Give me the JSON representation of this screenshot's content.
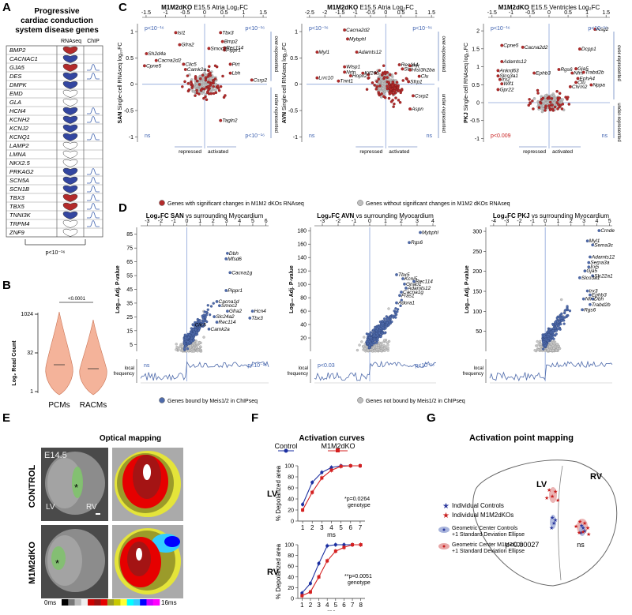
{
  "panel_letters": [
    "A",
    "B",
    "C",
    "D",
    "E",
    "F",
    "G"
  ],
  "panelA": {
    "title_lines": [
      "Progressive",
      "cardiac conduction",
      "system disease genes"
    ],
    "col_headers": [
      "RNAseq",
      "ChIP"
    ],
    "genes": [
      {
        "name": "BMP2",
        "rna": "red",
        "chip": false
      },
      {
        "name": "CACNAC1",
        "rna": "blue",
        "chip": false
      },
      {
        "name": "GJA5",
        "rna": "red",
        "chip": true
      },
      {
        "name": "DES",
        "rna": "blue",
        "chip": true
      },
      {
        "name": "DMPK",
        "rna": "blue",
        "chip": false
      },
      {
        "name": "EMD",
        "rna": "white",
        "chip": false
      },
      {
        "name": "GLA",
        "rna": "white",
        "chip": false
      },
      {
        "name": "HCN4",
        "rna": "blue",
        "chip": true
      },
      {
        "name": "KCNH2",
        "rna": "blue",
        "chip": true
      },
      {
        "name": "KCNJ2",
        "rna": "blue",
        "chip": false
      },
      {
        "name": "KCNQ1",
        "rna": "blue",
        "chip": true
      },
      {
        "name": "LAMP2",
        "rna": "white",
        "chip": false
      },
      {
        "name": "LMNA",
        "rna": "white",
        "chip": false
      },
      {
        "name": "NKX2.5",
        "rna": "white",
        "chip": false
      },
      {
        "name": "PRKAG2",
        "rna": "blue",
        "chip": true
      },
      {
        "name": "SCN5A",
        "rna": "blue",
        "chip": true
      },
      {
        "name": "SCN1B",
        "rna": "blue",
        "chip": true
      },
      {
        "name": "TBX3",
        "rna": "red",
        "chip": true
      },
      {
        "name": "TBX5",
        "rna": "red",
        "chip": true
      },
      {
        "name": "TNNI3K",
        "rna": "blue",
        "chip": true
      },
      {
        "name": "TRPM4",
        "rna": "white",
        "chip": true
      },
      {
        "name": "ZNF9",
        "rna": "white",
        "chip": false
      }
    ],
    "pvalue": "p<10⁻¹⁶",
    "colors": {
      "red": "#b32b2b",
      "blue": "#3346a0",
      "white": "#ffffff"
    }
  },
  "panelB": {
    "chart_data": {
      "type": "violin",
      "categories": [
        "PCMs",
        "RACMs"
      ],
      "ylabel": "Log₂ Read Count",
      "y_ticks": [
        "1024",
        "32",
        "1"
      ],
      "significance": "<0.0001",
      "colors": [
        "#f4b39a",
        "#f4b39a"
      ]
    }
  },
  "panelC": {
    "legend": {
      "sig": "Genes with significant changes in M1M2 dKOs RNAseq",
      "nonsig": "Genes without significant changes in M1M2 dKOs RNAseq"
    },
    "side_labels": {
      "over": "over-represented",
      "under": "under-represented"
    },
    "bottom_labels": {
      "repressed": "repressed",
      "activated": "activated"
    },
    "plots": [
      {
        "title_bold": "M1M2dKO",
        "title_rest": "E15.5 Atria Log₂FC",
        "ylabel_bold": "SAN",
        "ylabel_rest": "Single-cell RNAseq log₁₀FC",
        "x_ticks": [
          "-1.5",
          "-1",
          "-0.5",
          "0",
          "0.5",
          "1",
          "1.5"
        ],
        "y_ticks": [
          "1",
          "0.5",
          "0",
          "-0.5",
          "-1"
        ],
        "stat_tl": "p<10⁻¹⁶",
        "stat_tr": "p<10⁻¹⁶",
        "stat_bl": "ns",
        "stat_br": "p<10⁻¹⁶",
        "labels": [
          {
            "t": "Isl1",
            "x": -0.7,
            "y": 0.95
          },
          {
            "t": "Tbx3",
            "x": 0.45,
            "y": 0.95
          },
          {
            "t": "Sh2d4a",
            "x": -1.45,
            "y": 0.55
          },
          {
            "t": "Gfra2",
            "x": -0.6,
            "y": 0.72
          },
          {
            "t": "Bmp2",
            "x": 0.5,
            "y": 0.78
          },
          {
            "t": "Rec114",
            "x": 0.55,
            "y": 0.66
          },
          {
            "t": "Pippr1",
            "x": 0.55,
            "y": 0.62
          },
          {
            "t": "Smoc2",
            "x": 0.15,
            "y": 0.65
          },
          {
            "t": "Cacna2d2",
            "x": -1.2,
            "y": 0.42
          },
          {
            "t": "Clic5",
            "x": -0.5,
            "y": 0.35
          },
          {
            "t": "Cpne5",
            "x": -1.5,
            "y": 0.32
          },
          {
            "t": "Camk2a",
            "x": -0.45,
            "y": 0.25
          },
          {
            "t": "Pirt",
            "x": 0.7,
            "y": 0.35
          },
          {
            "t": "Lbh",
            "x": 0.7,
            "y": 0.18
          },
          {
            "t": "Csrp2",
            "x": 1.25,
            "y": 0.05
          },
          {
            "t": "Tagln2",
            "x": 0.45,
            "y": -0.72
          }
        ],
        "counts": {
          "sig": 70,
          "nonsig": 230
        },
        "seed": 11
      },
      {
        "title_bold": "M1M2dKO",
        "title_rest": "E15.5 Atria Log₂FC",
        "ylabel_bold": "AVN",
        "ylabel_rest": "Single-cell RNAseq log₁₀FC",
        "x_ticks": [
          "-2.5",
          "-2",
          "-1.5",
          "-1",
          "-0.5",
          "0",
          "0.5",
          "1",
          "1.5"
        ],
        "y_ticks": [
          "1",
          "0.5",
          "0",
          "-0.5",
          "-1"
        ],
        "stat_tl": "p<10⁻¹⁶",
        "stat_tr": "p<10⁻¹⁶",
        "stat_bl": "ns",
        "stat_br": "ns",
        "labels": [
          {
            "t": "Cacna2d2",
            "x": -1.3,
            "y": 1.0
          },
          {
            "t": "Mybphl",
            "x": -1.2,
            "y": 0.83
          },
          {
            "t": "Myl1",
            "x": -2.2,
            "y": 0.58
          },
          {
            "t": "Adamts12",
            "x": -0.9,
            "y": 0.58
          },
          {
            "t": "Rec114",
            "x": 0.5,
            "y": 0.34
          },
          {
            "t": "Pirt",
            "x": 0.85,
            "y": 0.32
          },
          {
            "t": "Stn",
            "x": 0.6,
            "y": 0.26
          },
          {
            "t": "Hist3h2ba",
            "x": 0.85,
            "y": 0.24
          },
          {
            "t": "Wisp1",
            "x": -1.3,
            "y": 0.3
          },
          {
            "t": "Nrtn",
            "x": -1.3,
            "y": 0.2
          },
          {
            "t": "Kif26b",
            "x": -0.7,
            "y": 0.18
          },
          {
            "t": "Hopx2",
            "x": -1.1,
            "y": 0.13
          },
          {
            "t": "Lrrc10",
            "x": -2.2,
            "y": 0.09
          },
          {
            "t": "Tnnt1",
            "x": -1.5,
            "y": 0.03
          },
          {
            "t": "Clu",
            "x": 1.15,
            "y": 0.12
          },
          {
            "t": "Sfrp1",
            "x": 0.8,
            "y": 0.02
          },
          {
            "t": "Csrp2",
            "x": 0.95,
            "y": -0.25
          },
          {
            "t": "Aspn",
            "x": 0.85,
            "y": -0.5
          }
        ],
        "counts": {
          "sig": 110,
          "nonsig": 220
        },
        "seed": 23
      },
      {
        "title_bold": "M1M2dKO",
        "title_rest": "E15.5 Ventricles Log₂FC",
        "ylabel_bold": "PKJ",
        "ylabel_rest": "Single-cell RNAseq log₁₀FC",
        "x_ticks": [
          "-1.5",
          "-1",
          "-0.5",
          "0",
          "0.5",
          "1",
          "1.5"
        ],
        "y_ticks": [
          "2",
          "1.5",
          "1",
          "0.5",
          "0",
          "-0.5",
          "-1"
        ],
        "stat_tl": "p<10⁻¹⁶",
        "stat_tr": "p<10⁻¹⁶",
        "stat_bl": "p<0.009",
        "stat_br": "ns",
        "labels": [
          {
            "t": "Nsg2",
            "x": 1.25,
            "y": 2.0
          },
          {
            "t": "Cpne5",
            "x": -1.2,
            "y": 1.55
          },
          {
            "t": "Cacna2d2",
            "x": -0.65,
            "y": 1.5
          },
          {
            "t": "Dcpp1",
            "x": 0.85,
            "y": 1.45
          },
          {
            "t": "Adamts12",
            "x": -1.2,
            "y": 1.1
          },
          {
            "t": "Ankrd63",
            "x": -1.3,
            "y": 0.85
          },
          {
            "t": "Slco3a1",
            "x": -1.3,
            "y": 0.7
          },
          {
            "t": "Irx2",
            "x": -1.25,
            "y": 0.6
          },
          {
            "t": "Wif1",
            "x": -1.2,
            "y": 0.48
          },
          {
            "t": "Gpr22",
            "x": -1.3,
            "y": 0.32
          },
          {
            "t": "Ephb3",
            "x": -0.35,
            "y": 0.78
          },
          {
            "t": "Rgs6",
            "x": 0.3,
            "y": 0.88
          },
          {
            "t": "Gja5",
            "x": 0.75,
            "y": 0.9
          },
          {
            "t": "Nfm",
            "x": 0.65,
            "y": 0.78
          },
          {
            "t": "Trabd2b",
            "x": 0.95,
            "y": 0.8
          },
          {
            "t": "EphA4",
            "x": 0.8,
            "y": 0.63
          },
          {
            "t": "Clu",
            "x": 0.75,
            "y": 0.52
          },
          {
            "t": "Chrm2",
            "x": 0.6,
            "y": 0.4
          },
          {
            "t": "Nppa",
            "x": 1.15,
            "y": 0.45
          }
        ],
        "counts": {
          "sig": 45,
          "nonsig": 250
        },
        "seed": 37
      }
    ]
  },
  "panelD": {
    "legend": {
      "bound": "Genes bound by Meis1/2 in ChIPseq",
      "unbound": "Genes not bound by Meis1/2 in ChIPseq"
    },
    "local_freq_label": [
      "local",
      "frequency"
    ],
    "plots": [
      {
        "title_bold": "Log₂FC SAN",
        "title_rest": "vs surrounding Myocardium",
        "ylabel": "Log₁₀ Adj. P-value",
        "x_ticks": [
          "-3",
          "-2",
          "-1",
          "0",
          "1",
          "2",
          "3",
          "4",
          "5",
          "6"
        ],
        "y_ticks": [
          "85",
          "75",
          "65",
          "55",
          "45",
          "35",
          "25",
          "15",
          "5"
        ],
        "stat_l": "ns",
        "stat_r": "p<10⁻¹⁶",
        "labels": [
          {
            "t": "Dbh",
            "x": 3.2,
            "y": 70
          },
          {
            "t": "Mfsd6",
            "x": 3.1,
            "y": 66
          },
          {
            "t": "Cacna1g",
            "x": 3.4,
            "y": 56
          },
          {
            "t": "Pippr1",
            "x": 3.1,
            "y": 43
          },
          {
            "t": "Cacna1d",
            "x": 2.4,
            "y": 35
          },
          {
            "t": "Smoc2",
            "x": 2.6,
            "y": 32
          },
          {
            "t": "Gfra2",
            "x": 3.2,
            "y": 28
          },
          {
            "t": "Hcn4",
            "x": 5.1,
            "y": 28
          },
          {
            "t": "Slc24a2",
            "x": 2.2,
            "y": 24
          },
          {
            "t": "Rec114",
            "x": 2.4,
            "y": 20
          },
          {
            "t": "Tbx3",
            "x": 4.9,
            "y": 23
          },
          {
            "t": "Clic5",
            "x": 0.6,
            "y": 18
          },
          {
            "t": "Camk2a",
            "x": 1.8,
            "y": 15
          }
        ],
        "counts": {
          "bound": 260,
          "unbound": 160
        },
        "seed": 53
      },
      {
        "title_bold": "Log₂FC AVN",
        "title_rest": "vs surrounding Myocardium",
        "ylabel": "Log₁₀ Adj. P-value",
        "x_ticks": [
          "-3",
          "-2",
          "-1",
          "0",
          "1",
          "2",
          "3",
          "4"
        ],
        "y_ticks": [
          "180",
          "160",
          "140",
          "120",
          "100",
          "80",
          "60",
          "40",
          "20"
        ],
        "stat_l": "p<0.03",
        "stat_r": "p<10⁻¹⁶",
        "labels": [
          {
            "t": "Mybphl",
            "x": 3.3,
            "y": 175
          },
          {
            "t": "Rgs6",
            "x": 2.6,
            "y": 160
          },
          {
            "t": "Tbx5",
            "x": 1.8,
            "y": 112
          },
          {
            "t": "Kcnj5",
            "x": 2.2,
            "y": 106
          },
          {
            "t": "Rec114",
            "x": 2.9,
            "y": 102
          },
          {
            "t": "Gnao1",
            "x": 2.3,
            "y": 98
          },
          {
            "t": "Adamts12",
            "x": 2.4,
            "y": 92
          },
          {
            "t": "Cacna1g",
            "x": 2.1,
            "y": 86
          },
          {
            "t": "Fras1",
            "x": 2.0,
            "y": 81
          },
          {
            "t": "Adora1",
            "x": 1.8,
            "y": 70
          }
        ],
        "counts": {
          "bound": 300,
          "unbound": 150
        },
        "seed": 71
      },
      {
        "title_bold": "Log₂FC PKJ",
        "title_rest": "vs surrounding Myocardium",
        "ylabel": "Log₁₀ Adj. P-value",
        "x_ticks": [
          "-4",
          "-3",
          "-2",
          "-1",
          "0",
          "1",
          "2",
          "3",
          "4",
          "5"
        ],
        "y_ticks": [
          "300",
          "250",
          "200",
          "150",
          "100",
          "50"
        ],
        "stat_l": "",
        "stat_r": "",
        "labels": [
          {
            "t": "Crnde",
            "x": 4.3,
            "y": 298
          },
          {
            "t": "Myl1",
            "x": 3.4,
            "y": 272
          },
          {
            "t": "Sema3c",
            "x": 3.8,
            "y": 262
          },
          {
            "t": "Adamts12",
            "x": 3.6,
            "y": 232
          },
          {
            "t": "Sema3a",
            "x": 3.5,
            "y": 218
          },
          {
            "t": "Irx5",
            "x": 3.5,
            "y": 207
          },
          {
            "t": "Gja5",
            "x": 3.2,
            "y": 197
          },
          {
            "t": "Slc22a1",
            "x": 3.8,
            "y": 185
          },
          {
            "t": "Slco3a1",
            "x": 2.8,
            "y": 180
          },
          {
            "t": "Irx3",
            "x": 3.4,
            "y": 147
          },
          {
            "t": "Ephb3",
            "x": 3.6,
            "y": 137
          },
          {
            "t": "Nfm",
            "x": 3.1,
            "y": 127
          },
          {
            "t": "Dbh",
            "x": 3.8,
            "y": 127
          },
          {
            "t": "Trabd2b",
            "x": 3.6,
            "y": 113
          },
          {
            "t": "Rgs6",
            "x": 3.0,
            "y": 100
          }
        ],
        "counts": {
          "bound": 230,
          "unbound": 160
        },
        "seed": 89
      }
    ]
  },
  "panelE": {
    "title": "Optical mapping",
    "row_labels": [
      "CONTROL",
      "M1M2dKO"
    ],
    "stage": "E14.5",
    "lv": "LV",
    "rv": "RV",
    "scale_start": "0ms",
    "scale_end": "16ms",
    "scale_colors": [
      "#000000",
      "#777777",
      "#bbbbbb",
      "#eeeeee",
      "#cc0000",
      "#991111",
      "#e60000",
      "#9b9b2a",
      "#c8c800",
      "#ffff33",
      "#00ffff",
      "#33ccff",
      "#0000ff",
      "#cc00ff",
      "#ff00ff"
    ]
  },
  "panelF": {
    "title": "Activation curves",
    "legend": [
      "Control",
      "M1M2dKO"
    ],
    "colors": [
      "#1a2ea0",
      "#d42020"
    ],
    "chart_data": [
      {
        "type": "line",
        "name": "LV",
        "ylabel": "% Depolarized area",
        "xlabel": "ms",
        "x": [
          1,
          2,
          3,
          4,
          5,
          6,
          7
        ],
        "ylim": [
          0,
          100
        ],
        "y_ticks": [
          "100",
          "80",
          "60",
          "40",
          "20",
          "0"
        ],
        "series": [
          {
            "name": "Control",
            "values": [
              30,
              70,
              88,
              97,
              100,
              100,
              100
            ]
          },
          {
            "name": "M1M2dKO",
            "values": [
              20,
              52,
              78,
              92,
              99,
              100,
              100
            ]
          }
        ],
        "annotation": [
          "*p=0.0264",
          "genotype"
        ]
      },
      {
        "type": "line",
        "name": "RV",
        "ylabel": "% Depolarized area",
        "xlabel": "ms",
        "x": [
          1,
          2,
          3,
          4,
          5,
          6,
          7,
          8
        ],
        "ylim": [
          0,
          100
        ],
        "y_ticks": [
          "100",
          "80",
          "60",
          "40",
          "20",
          "0"
        ],
        "series": [
          {
            "name": "Control",
            "values": [
              10,
              28,
              65,
              98,
              100,
              100,
              100,
              100
            ]
          },
          {
            "name": "M1M2dKO",
            "values": [
              5,
              12,
              40,
              70,
              88,
              95,
              100,
              100
            ]
          }
        ],
        "annotation": [
          "**p=0.0051",
          "genotype"
        ]
      }
    ]
  },
  "panelG": {
    "title": "Activation point mapping",
    "lv": "LV",
    "rv": "RV",
    "legend": [
      "Individual Controls",
      "Individual M1M2dKOs"
    ],
    "ellipse_legend": [
      [
        "Geometric Center Controls",
        "+1 Standard Deviation Ellipse"
      ],
      [
        "Geometric Center M1M2KOs",
        "+1 Standard Deviation Ellipse"
      ]
    ],
    "stat_lv": "p<0.00027",
    "stat_rv": "ns",
    "colors": {
      "control": "#2d3a9e",
      "ko": "#c81e1e"
    }
  }
}
